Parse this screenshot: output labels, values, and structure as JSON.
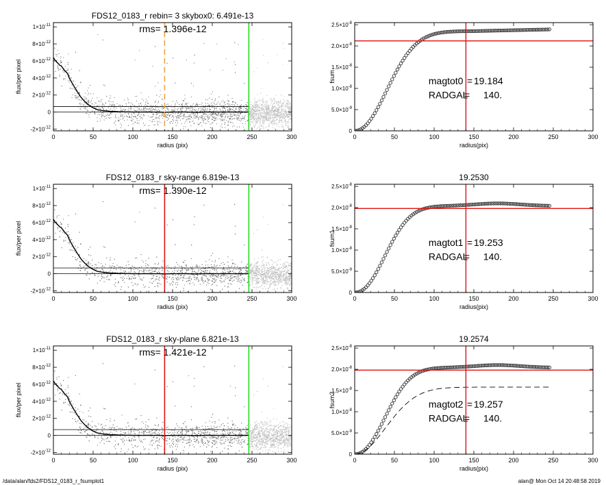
{
  "footer": {
    "path": "/data/alan/fds2/FDS12_0183_r_fsumplot1",
    "stamp": "alan@  Mon Oct 14 20:48:58 2019"
  },
  "colors": {
    "median_line": "#000000",
    "scatter_dark": "#707070",
    "scatter_light": "#c0c0c0",
    "rad_marker": "#dd1111",
    "rad_marker_dashed": "#f0a040",
    "edge_marker": "#22dd22",
    "curve_marker": "#333333"
  },
  "chart_data": [
    {
      "id": "profile-top",
      "type": "scatter",
      "title": "FDS12_0183_r rebin= 3    skybox0:  6.491e-13",
      "subtitle": "rms= 1.396e-12",
      "xlabel": "radius (pix)",
      "ylabel": "flux/per pixel",
      "xlim": [
        0,
        300
      ],
      "ylim": [
        -2.2e-12,
        1.05e-11
      ],
      "xticks": [
        0,
        50,
        100,
        150,
        200,
        250,
        300
      ],
      "yticks": [
        {
          "v": -2e-12,
          "m": "-2",
          "e": "-12"
        },
        {
          "v": 0,
          "m": "0",
          "e": ""
        },
        {
          "v": 2e-12,
          "m": "2",
          "e": "-12"
        },
        {
          "v": 4e-12,
          "m": "4",
          "e": "-12"
        },
        {
          "v": 6e-12,
          "m": "6",
          "e": "-12"
        },
        {
          "v": 8e-12,
          "m": "8",
          "e": "-12"
        },
        {
          "v": 1e-11,
          "m": "1",
          "e": "-11"
        }
      ],
      "sky_level": 6.491e-13,
      "zero_line": 0,
      "rad_marker": {
        "x": 140,
        "style": "dashed",
        "color": "#f0a040"
      },
      "edge_marker": {
        "x": 246,
        "color": "#22dd22"
      },
      "median_profile": {
        "x": [
          0,
          2,
          5,
          8,
          10,
          13,
          15,
          18,
          20,
          23,
          26,
          30,
          35,
          40,
          45,
          50,
          55,
          60,
          65,
          70,
          80,
          90,
          100,
          110,
          120,
          130,
          140,
          150,
          160,
          170,
          180,
          190,
          200,
          210,
          220,
          230,
          240,
          246
        ],
        "y": [
          6.4e-12,
          6.1e-12,
          5.8e-12,
          5.5e-12,
          5.4e-12,
          5e-12,
          4.8e-12,
          4.5e-12,
          4e-12,
          3.5e-12,
          3e-12,
          2.4e-12,
          1.7e-12,
          1.2e-12,
          8e-13,
          5e-13,
          3e-13,
          2e-13,
          1.5e-13,
          1e-13,
          5e-14,
          3e-14,
          1e-14,
          0,
          2e-14,
          0,
          -1e-14,
          0,
          1e-14,
          0,
          -2e-14,
          0,
          1e-14,
          0,
          0,
          0,
          0,
          0
        ]
      },
      "scatter": {
        "scale": 1.4e-12,
        "dark_edge": 246
      }
    },
    {
      "id": "fsum-top",
      "type": "scatter",
      "title": "",
      "xlabel": "radius(pix)",
      "ylabel": "fsum",
      "xlim": [
        0,
        300
      ],
      "ylim": [
        0,
        2.55e-08
      ],
      "xticks": [
        0,
        50,
        100,
        150,
        200,
        250,
        300
      ],
      "yticks": [
        {
          "v": 0,
          "m": "0",
          "e": ""
        },
        {
          "v": 5e-09,
          "m": "5.0",
          "e": "-9"
        },
        {
          "v": 1e-08,
          "m": "1.0",
          "e": "-8"
        },
        {
          "v": 1.5e-08,
          "m": "1.5",
          "e": "-8"
        },
        {
          "v": 2e-08,
          "m": "2.0",
          "e": "-8"
        },
        {
          "v": 2.5e-08,
          "m": "2.5",
          "e": "-8"
        }
      ],
      "curve": {
        "x_max": 246,
        "a": 2.35e-08,
        "s": 55,
        "p": 2.1,
        "tail_rise": 4e-10
      },
      "h_marker": 2.12e-08,
      "v_marker": 140,
      "annotations": [
        {
          "label": "magtot0",
          "value": "19.184"
        },
        {
          "label": "RADGAL",
          "value": "140."
        }
      ]
    },
    {
      "id": "profile-mid",
      "type": "scatter",
      "title": "FDS12_0183_r sky-range  6.819e-13",
      "subtitle": "rms= 1.390e-12",
      "xlabel": "radius (pix)",
      "ylabel": "flux/per pixel",
      "xlim": [
        0,
        300
      ],
      "ylim": [
        -2.2e-12,
        1.05e-11
      ],
      "xticks": [
        0,
        50,
        100,
        150,
        200,
        250,
        300
      ],
      "yticks": [
        {
          "v": -2e-12,
          "m": "-2",
          "e": "-12"
        },
        {
          "v": 0,
          "m": "0",
          "e": ""
        },
        {
          "v": 2e-12,
          "m": "2",
          "e": "-12"
        },
        {
          "v": 4e-12,
          "m": "4",
          "e": "-12"
        },
        {
          "v": 6e-12,
          "m": "6",
          "e": "-12"
        },
        {
          "v": 8e-12,
          "m": "8",
          "e": "-12"
        },
        {
          "v": 1e-11,
          "m": "1",
          "e": "-11"
        }
      ],
      "sky_level": 6.819e-13,
      "zero_line": 0,
      "rad_marker": {
        "x": 140,
        "style": "solid",
        "color": "#dd1111"
      },
      "edge_marker": {
        "x": 246,
        "color": "#22dd22"
      },
      "median_profile": {
        "x": [
          0,
          2,
          5,
          8,
          10,
          13,
          15,
          18,
          20,
          23,
          26,
          30,
          35,
          40,
          45,
          50,
          55,
          60,
          65,
          70,
          80,
          90,
          100,
          110,
          120,
          130,
          140,
          150,
          160,
          170,
          180,
          190,
          200,
          210,
          220,
          230,
          240,
          246
        ],
        "y": [
          6.4e-12,
          6.1e-12,
          5.8e-12,
          5.5e-12,
          5.4e-12,
          5e-12,
          4.8e-12,
          4.5e-12,
          4e-12,
          3.5e-12,
          3e-12,
          2.4e-12,
          1.7e-12,
          1.2e-12,
          8e-13,
          5e-13,
          3e-13,
          2e-13,
          1.5e-13,
          1e-13,
          5e-14,
          3e-14,
          1e-14,
          0,
          2e-14,
          0,
          -1e-14,
          0,
          1e-14,
          0,
          -2e-14,
          0,
          1e-14,
          0,
          0,
          0,
          0,
          0
        ]
      },
      "scatter": {
        "scale": 1.4e-12,
        "dark_edge": 246
      }
    },
    {
      "id": "fsum-mid",
      "type": "scatter",
      "title": "19.2530",
      "xlabel": "radius(pix)",
      "ylabel": "fsum1",
      "xlim": [
        0,
        300
      ],
      "ylim": [
        0,
        2.55e-08
      ],
      "xticks": [
        0,
        50,
        100,
        150,
        200,
        250,
        300
      ],
      "yticks": [
        {
          "v": 0,
          "m": "0",
          "e": ""
        },
        {
          "v": 5e-09,
          "m": "5.0",
          "e": "-9"
        },
        {
          "v": 1e-08,
          "m": "1.0",
          "e": "-8"
        },
        {
          "v": 1.5e-08,
          "m": "1.5",
          "e": "-8"
        },
        {
          "v": 2e-08,
          "m": "2.0",
          "e": "-8"
        },
        {
          "v": 2.5e-08,
          "m": "2.5",
          "e": "-8"
        }
      ],
      "curve": {
        "x_max": 246,
        "a": 2.04e-08,
        "s": 50,
        "p": 2.2,
        "bump": 6e-10,
        "bump_x": 180
      },
      "h_marker": 1.98e-08,
      "v_marker": 140,
      "annotations": [
        {
          "label": "magtot1",
          "value": "19.253"
        },
        {
          "label": "RADGAL",
          "value": "140."
        }
      ]
    },
    {
      "id": "profile-bottom",
      "type": "scatter",
      "title": "FDS12_0183_r sky-plane  6.821e-13",
      "subtitle": "rms= 1.421e-12",
      "xlabel": "radius (pix)",
      "ylabel": "flux/per pixel",
      "xlim": [
        0,
        300
      ],
      "ylim": [
        -2.2e-12,
        1.05e-11
      ],
      "xticks": [
        0,
        50,
        100,
        150,
        200,
        250,
        300
      ],
      "yticks": [
        {
          "v": -2e-12,
          "m": "-2",
          "e": "-12"
        },
        {
          "v": 0,
          "m": "0",
          "e": ""
        },
        {
          "v": 2e-12,
          "m": "2",
          "e": "-12"
        },
        {
          "v": 4e-12,
          "m": "4",
          "e": "-12"
        },
        {
          "v": 6e-12,
          "m": "6",
          "e": "-12"
        },
        {
          "v": 8e-12,
          "m": "8",
          "e": "-12"
        },
        {
          "v": 1e-11,
          "m": "1",
          "e": "-11"
        }
      ],
      "sky_level": 6.821e-13,
      "zero_line": 0,
      "rad_marker": {
        "x": 140,
        "style": "solid",
        "color": "#dd1111"
      },
      "edge_marker": {
        "x": 246,
        "color": "#22dd22"
      },
      "median_profile": {
        "x": [
          0,
          2,
          5,
          8,
          10,
          13,
          15,
          18,
          20,
          23,
          26,
          30,
          35,
          40,
          45,
          50,
          55,
          60,
          65,
          70,
          80,
          90,
          100,
          110,
          120,
          130,
          140,
          150,
          160,
          170,
          180,
          190,
          200,
          210,
          220,
          230,
          240,
          246
        ],
        "y": [
          6.4e-12,
          6.1e-12,
          5.8e-12,
          5.5e-12,
          5.4e-12,
          5e-12,
          4.8e-12,
          4.5e-12,
          4e-12,
          3.5e-12,
          3e-12,
          2.4e-12,
          1.7e-12,
          1.2e-12,
          8e-13,
          5e-13,
          3e-13,
          2e-13,
          1.5e-13,
          1e-13,
          5e-14,
          3e-14,
          1e-14,
          0,
          2e-14,
          0,
          -1e-14,
          0,
          1e-14,
          0,
          -2e-14,
          0,
          1e-14,
          0,
          0,
          0,
          0,
          0
        ]
      },
      "scatter": {
        "scale": 1.45e-12,
        "dark_edge": 246
      }
    },
    {
      "id": "fsum-bottom",
      "type": "scatter",
      "title": "19.2574",
      "xlabel": "radius(pix)",
      "ylabel": "fsum2",
      "xlim": [
        0,
        300
      ],
      "ylim": [
        0,
        2.55e-08
      ],
      "xticks": [
        0,
        50,
        100,
        150,
        200,
        250,
        300
      ],
      "yticks": [
        {
          "v": 0,
          "m": "0",
          "e": ""
        },
        {
          "v": 5e-09,
          "m": "5.0",
          "e": "-9"
        },
        {
          "v": 1e-08,
          "m": "1.0",
          "e": "-8"
        },
        {
          "v": 1.5e-08,
          "m": "1.5",
          "e": "-8"
        },
        {
          "v": 2e-08,
          "m": "2.0",
          "e": "-8"
        },
        {
          "v": 2.5e-08,
          "m": "2.5",
          "e": "-8"
        }
      ],
      "curve": {
        "x_max": 246,
        "a": 2.04e-08,
        "s": 50,
        "p": 2.2,
        "bump": 6e-10,
        "bump_x": 180
      },
      "dashed_curve": {
        "x_max": 246,
        "a": 1.58e-08,
        "s": 55,
        "p": 2.0
      },
      "h_marker": 1.98e-08,
      "v_marker": 140,
      "annotations": [
        {
          "label": "magtot2",
          "value": "19.257"
        },
        {
          "label": "RADGAL",
          "value": "140."
        }
      ]
    }
  ]
}
